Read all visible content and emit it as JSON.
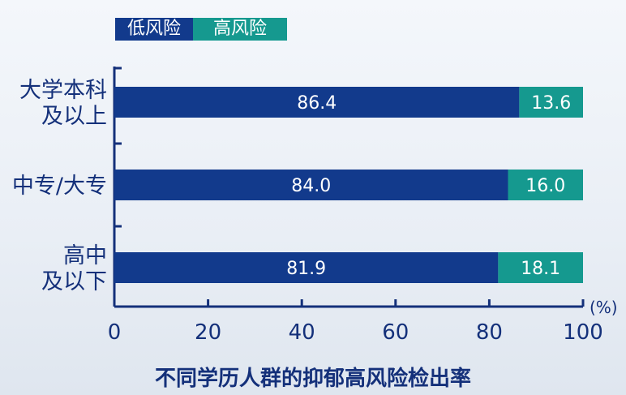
{
  "chart_data": {
    "type": "bar",
    "orientation": "horizontal",
    "stacked": true,
    "title": "不同学历人群的抑郁高风险检出率",
    "unit_label": "(%)",
    "categories": [
      [
        "大学本科",
        "及以上"
      ],
      [
        "中专/大专"
      ],
      [
        "高中",
        "及以下"
      ]
    ],
    "series": [
      {
        "name": "低风险",
        "color": "#123a8c",
        "values": [
          86.4,
          84.0,
          81.9
        ],
        "labels": [
          "86.4",
          "84.0",
          "81.9"
        ]
      },
      {
        "name": "高风险",
        "color": "#15998f",
        "values": [
          13.6,
          16.0,
          18.1
        ],
        "labels": [
          "13.6",
          "16.0",
          "18.1"
        ]
      }
    ],
    "xlim": [
      0,
      100
    ],
    "xticks": [
      "0",
      "20",
      "40",
      "60",
      "80",
      "100"
    ],
    "legend_position": "top-left",
    "grid": false
  }
}
